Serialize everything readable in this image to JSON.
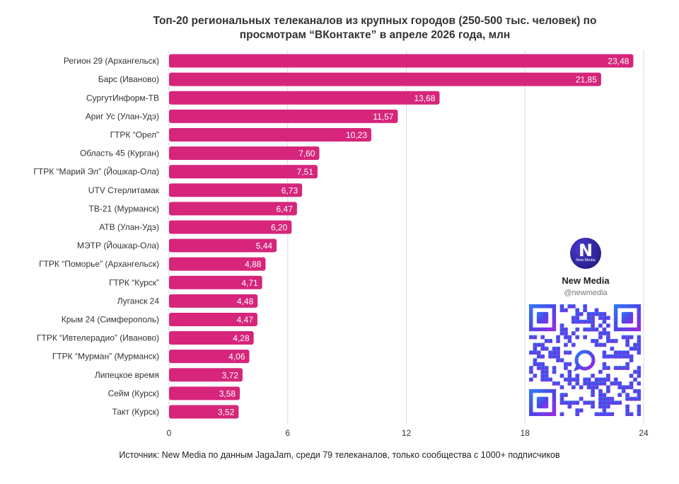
{
  "chart_data": {
    "type": "bar",
    "orientation": "horizontal",
    "title": "Топ-20 региональных телеканалов из крупных городов (250-500 тыс. человек) по просмотрам “ВКонтакте” в апреле 2026 года, млн",
    "categories": [
      "Регион 29 (Архангельск)",
      "Барс (Иваново)",
      "СургутИнформ-ТВ",
      "Ариг Ус (Улан-Удэ)",
      "ГТРК “Орел”",
      "Область 45 (Курган)",
      "ГТРК “Марий Эл” (Йошкар-Ола)",
      "UTV Стерлитамак",
      "ТВ-21 (Мурманск)",
      "АТВ (Улан-Удэ)",
      "МЭТР (Йошкар-Ола)",
      "ГТРК “Поморье” (Архангельск)",
      "ГТРК “Курск”",
      "Луганск 24",
      "Крым 24 (Симферополь)",
      "ГТРК “Ивтелерадио” (Иваново)",
      "ГТРК “Мурман” (Мурманск)",
      "Липецкое время",
      "Сейм (Курск)",
      "Такт (Курск)"
    ],
    "values": [
      23.48,
      21.85,
      13.68,
      11.57,
      10.23,
      7.6,
      7.51,
      6.73,
      6.47,
      6.2,
      5.44,
      4.88,
      4.71,
      4.48,
      4.47,
      4.28,
      4.06,
      3.72,
      3.58,
      3.52
    ],
    "value_labels": [
      "23,48",
      "21,85",
      "13,68",
      "11,57",
      "10,23",
      "7,60",
      "7,51",
      "6,73",
      "6,47",
      "6,20",
      "5,44",
      "4,88",
      "4,71",
      "4,48",
      "4,47",
      "4,28",
      "4,06",
      "3,72",
      "3,58",
      "3,52"
    ],
    "xlim": [
      0,
      24
    ],
    "xticks": [
      0,
      6,
      12,
      18,
      24
    ],
    "vertical_grid": true,
    "bar_color": "#d6257b"
  },
  "source": "Источник: New Media по данным JagaJam, среди 79 телеканалов, только сообщества с 1000+ подписчиков",
  "brand": {
    "logo_letter": "N",
    "logo_text": "New Media",
    "name": "New Media",
    "handle": "@newmedia",
    "qr_icon": "qr-code-icon"
  }
}
